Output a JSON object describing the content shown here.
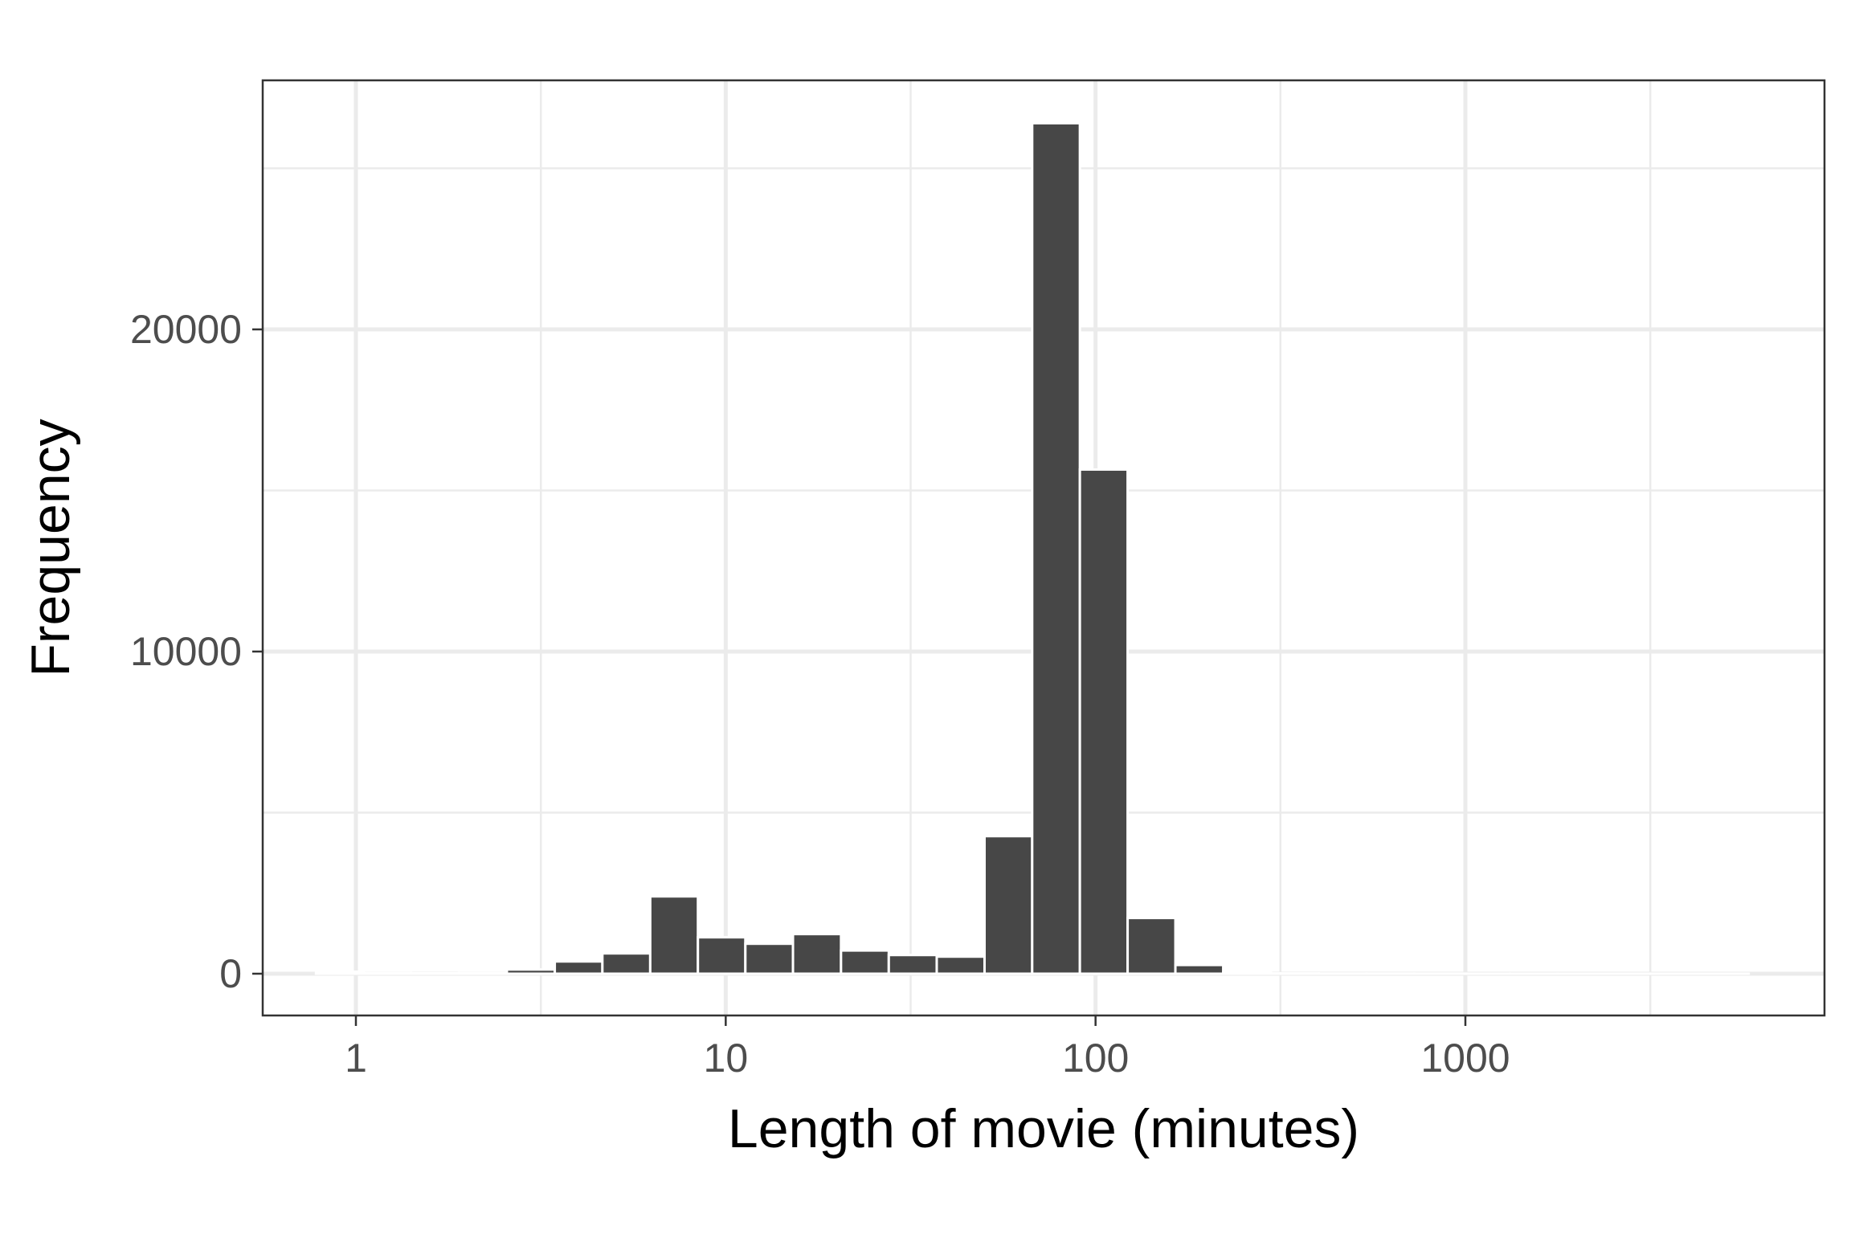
{
  "chart_data": {
    "type": "bar",
    "title": "",
    "xlabel": "Length of movie (minutes)",
    "ylabel": "Frequency",
    "x_scale": "log10",
    "xlim": [
      0.6,
      8.1
    ],
    "ylim": [
      -1300,
      27000
    ],
    "x_ticks": [
      {
        "value": 1,
        "label": "1"
      },
      {
        "value": 10,
        "label": "10"
      },
      {
        "value": 100,
        "label": "100"
      },
      {
        "value": 1000,
        "label": "1000"
      }
    ],
    "y_ticks": [
      {
        "value": 0,
        "label": "0"
      },
      {
        "value": 10000,
        "label": "10000"
      },
      {
        "value": 20000,
        "label": "20000"
      }
    ],
    "grid": true,
    "bar_color": "#474747",
    "bins": [
      {
        "from": 0.78,
        "to": 1.05,
        "count": 60
      },
      {
        "from": 1.05,
        "to": 1.41,
        "count": 20
      },
      {
        "from": 1.41,
        "to": 1.9,
        "count": 15
      },
      {
        "from": 1.9,
        "to": 2.56,
        "count": 20
      },
      {
        "from": 2.56,
        "to": 3.45,
        "count": 130
      },
      {
        "from": 3.45,
        "to": 4.64,
        "count": 380
      },
      {
        "from": 4.64,
        "to": 6.25,
        "count": 630
      },
      {
        "from": 6.25,
        "to": 8.41,
        "count": 2400
      },
      {
        "from": 8.41,
        "to": 11.3,
        "count": 1130
      },
      {
        "from": 11.3,
        "to": 15.2,
        "count": 930
      },
      {
        "from": 15.2,
        "to": 20.5,
        "count": 1230
      },
      {
        "from": 20.5,
        "to": 27.6,
        "count": 720
      },
      {
        "from": 27.6,
        "to": 37.2,
        "count": 580
      },
      {
        "from": 37.2,
        "to": 50.1,
        "count": 530
      },
      {
        "from": 50.1,
        "to": 67.4,
        "count": 4270
      },
      {
        "from": 67.4,
        "to": 90.7,
        "count": 26400
      },
      {
        "from": 90.7,
        "to": 122.1,
        "count": 15650
      },
      {
        "from": 122.1,
        "to": 164.4,
        "count": 1730
      },
      {
        "from": 164.4,
        "to": 221.4,
        "count": 270
      },
      {
        "from": 221.4,
        "to": 298.1,
        "count": 30
      },
      {
        "from": 298.1,
        "to": 401.3,
        "count": 10
      },
      {
        "from": 401.3,
        "to": 540.4,
        "count": 5
      },
      {
        "from": 540.4,
        "to": 727.6,
        "count": 5
      },
      {
        "from": 727.6,
        "to": 979.6,
        "count": 3
      },
      {
        "from": 979.6,
        "to": 1319,
        "count": 2
      },
      {
        "from": 1319,
        "to": 1776,
        "count": 2
      },
      {
        "from": 1776,
        "to": 2391,
        "count": 1
      },
      {
        "from": 2391,
        "to": 3219,
        "count": 1
      },
      {
        "from": 3219,
        "to": 4334,
        "count": 1
      },
      {
        "from": 4334,
        "to": 5836,
        "count": 1
      }
    ]
  }
}
